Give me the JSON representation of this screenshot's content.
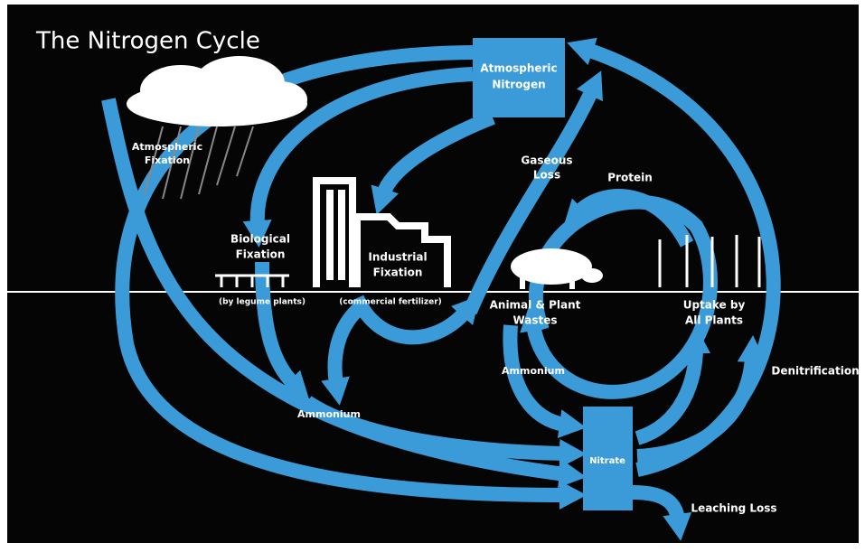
{
  "title": "The Nitrogen Cycle",
  "labels": {
    "atmospheric_nitrogen": [
      "Atmospheric",
      "Nitrogen"
    ],
    "atmospheric_fixation": [
      "Atmospheric",
      "Fixation"
    ],
    "gaseous_loss": [
      "Gaseous",
      "Loss"
    ],
    "protein": "Protein",
    "biological_fixation": [
      "Biological",
      "Fixation"
    ],
    "by_legume_plants": "(by legume plants)",
    "industrial_fixation": [
      "Industrial",
      "Fixation"
    ],
    "commercial_fertilizer": "(commercial fertilizer)",
    "animal_plant_wastes": [
      "Animal & Plant",
      "Wastes"
    ],
    "uptake_by_all_plants": [
      "Uptake by",
      "All Plants"
    ],
    "ammonium_left": "Ammonium",
    "ammonium_center": "Ammonium",
    "denitrification": "Denitrification",
    "nitrate": "Nitrate",
    "leaching_loss": "Leaching Loss"
  }
}
